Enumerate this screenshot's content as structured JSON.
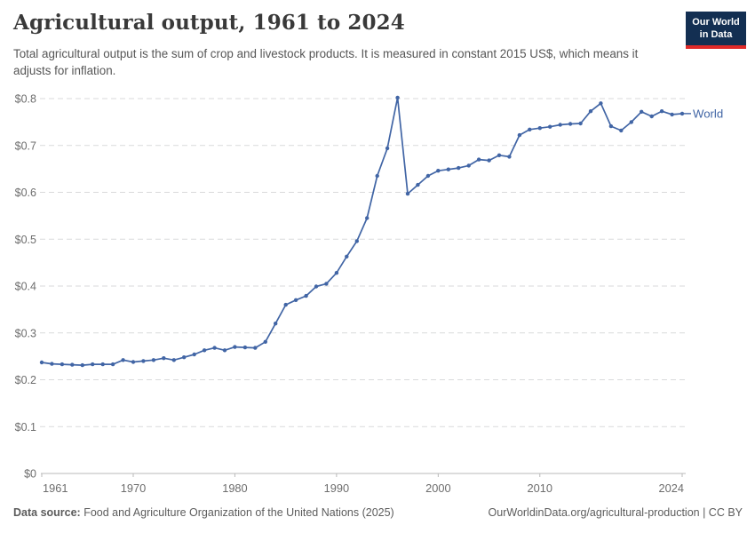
{
  "header": {
    "title": "Agricultural output, 1961 to 2024",
    "subtitle": "Total agricultural output is the sum of crop and livestock products. It is measured in constant 2015 US$, which means it adjusts for inflation.",
    "logo_line1": "Our World",
    "logo_line2": "in Data",
    "logo_bg_color": "#132f52",
    "logo_accent_color": "#e02928"
  },
  "chart_data": {
    "type": "line",
    "title": "Agricultural output, 1961 to 2024",
    "xlabel": "",
    "ylabel": "",
    "xlim": [
      1961,
      2024
    ],
    "ylim": [
      0,
      0.8
    ],
    "grid": "horizontal-dashed",
    "legend_position": "end-of-line-label",
    "x_tick_labels": [
      "1961",
      "1970",
      "1980",
      "1990",
      "2000",
      "2010",
      "2024"
    ],
    "x_tick_values": [
      1961,
      1970,
      1980,
      1990,
      2000,
      2010,
      2024
    ],
    "y_tick_labels": [
      "$0",
      "$0.1",
      "$0.2",
      "$0.3",
      "$0.4",
      "$0.5",
      "$0.6",
      "$0.7",
      "$0.8"
    ],
    "y_tick_values": [
      0,
      0.1,
      0.2,
      0.3,
      0.4,
      0.5,
      0.6,
      0.7,
      0.8
    ],
    "series": [
      {
        "name": "World",
        "color": "#4165a5",
        "years": [
          1961,
          1962,
          1963,
          1964,
          1965,
          1966,
          1967,
          1968,
          1969,
          1970,
          1971,
          1972,
          1973,
          1974,
          1975,
          1976,
          1977,
          1978,
          1979,
          1980,
          1981,
          1982,
          1983,
          1984,
          1985,
          1986,
          1987,
          1988,
          1989,
          1990,
          1991,
          1992,
          1993,
          1994,
          1995,
          1996,
          1997,
          1998,
          1999,
          2000,
          2001,
          2002,
          2003,
          2004,
          2005,
          2006,
          2007,
          2008,
          2009,
          2010,
          2011,
          2012,
          2013,
          2014,
          2015,
          2016,
          2017,
          2018,
          2019,
          2020,
          2021,
          2022,
          2023,
          2024
        ],
        "values": [
          0.237,
          0.234,
          0.233,
          0.232,
          0.231,
          0.233,
          0.233,
          0.233,
          0.242,
          0.238,
          0.24,
          0.242,
          0.246,
          0.242,
          0.248,
          0.254,
          0.263,
          0.268,
          0.263,
          0.27,
          0.269,
          0.268,
          0.281,
          0.32,
          0.36,
          0.37,
          0.379,
          0.399,
          0.405,
          0.428,
          0.463,
          0.496,
          0.545,
          0.635,
          0.694,
          0.802,
          0.597,
          0.616,
          0.635,
          0.646,
          0.649,
          0.652,
          0.657,
          0.67,
          0.668,
          0.679,
          0.676,
          0.722,
          0.734,
          0.737,
          0.74,
          0.744,
          0.746,
          0.747,
          0.773,
          0.79,
          0.741,
          0.732,
          0.75,
          0.772,
          0.762,
          0.773,
          0.766,
          0.768
        ]
      }
    ],
    "colors": {
      "gridline": "#d9dadb",
      "axis_line": "#b9b9b9",
      "tick_text": "#6d6d6d"
    }
  },
  "footer": {
    "source_label": "Data source:",
    "source_text": " Food and Agriculture Organization of the United Nations (2025)",
    "citation": "OurWorldinData.org/agricultural-production | CC BY"
  }
}
